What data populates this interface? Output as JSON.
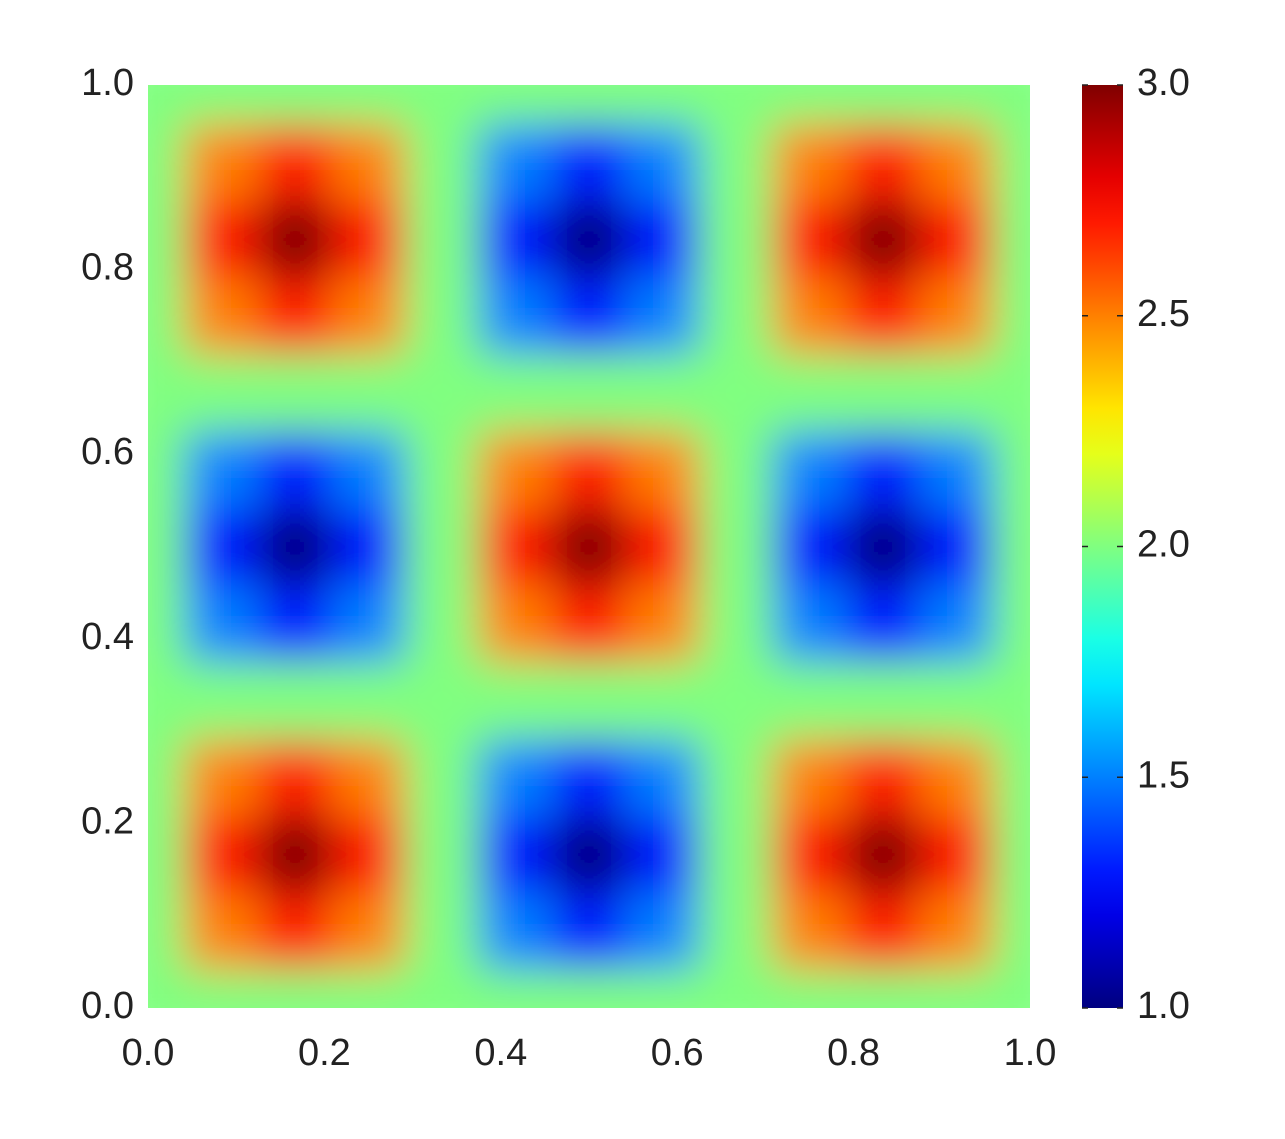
{
  "chart_data": {
    "type": "heatmap",
    "x": [
      0,
      0.083,
      0.167,
      0.25,
      0.333,
      0.417,
      0.5,
      0.583,
      0.667,
      0.75,
      0.833,
      0.917,
      1
    ],
    "y": [
      0,
      0.083,
      0.167,
      0.25,
      0.333,
      0.417,
      0.5,
      0.583,
      0.667,
      0.75,
      0.833,
      0.917,
      1
    ],
    "z": [
      [
        2,
        2,
        2,
        2,
        2,
        2,
        2,
        2,
        2,
        2,
        2,
        2,
        2
      ],
      [
        2,
        2.5,
        2.71,
        2.5,
        2,
        1.5,
        1.29,
        1.5,
        2,
        2.5,
        2.71,
        2.5,
        2
      ],
      [
        2,
        2.71,
        3,
        2.71,
        2,
        1.29,
        1,
        1.29,
        2,
        2.71,
        3,
        2.71,
        2
      ],
      [
        2,
        2.5,
        2.71,
        2.5,
        2,
        1.5,
        1.29,
        1.5,
        2,
        2.5,
        2.71,
        2.5,
        2
      ],
      [
        2,
        2,
        2,
        2,
        2,
        2,
        2,
        2,
        2,
        2,
        2,
        2,
        2
      ],
      [
        2,
        1.5,
        1.29,
        1.5,
        2,
        2.5,
        2.71,
        2.5,
        2,
        1.5,
        1.29,
        1.5,
        2
      ],
      [
        2,
        1.29,
        1,
        1.29,
        2,
        2.71,
        3,
        2.71,
        2,
        1.29,
        1,
        1.29,
        2
      ],
      [
        2,
        1.5,
        1.29,
        1.5,
        2,
        2.5,
        2.71,
        2.5,
        2,
        1.5,
        1.29,
        1.5,
        2
      ],
      [
        2,
        2,
        2,
        2,
        2,
        2,
        2,
        2,
        2,
        2,
        2,
        2,
        2
      ],
      [
        2,
        2.5,
        2.71,
        2.5,
        2,
        1.5,
        1.29,
        1.5,
        2,
        2.5,
        2.71,
        2.5,
        2
      ],
      [
        2,
        2.71,
        3,
        2.71,
        2,
        1.29,
        1,
        1.29,
        2,
        2.71,
        3,
        2.71,
        2
      ],
      [
        2,
        2.5,
        2.71,
        2.5,
        2,
        1.5,
        1.29,
        1.5,
        2,
        2.5,
        2.71,
        2.5,
        2
      ],
      [
        2,
        2,
        2,
        2,
        2,
        2,
        2,
        2,
        2,
        2,
        2,
        2,
        2
      ]
    ],
    "colormap": "jet",
    "xlim": [
      0,
      1
    ],
    "ylim": [
      0,
      1
    ],
    "clim": [
      1,
      3
    ],
    "xticks": [
      {
        "value": 0,
        "label": "0.0"
      },
      {
        "value": 0.2,
        "label": "0.2"
      },
      {
        "value": 0.4,
        "label": "0.4"
      },
      {
        "value": 0.6,
        "label": "0.6"
      },
      {
        "value": 0.8,
        "label": "0.8"
      },
      {
        "value": 1,
        "label": "1.0"
      }
    ],
    "yticks": [
      {
        "value": 0,
        "label": "0.0"
      },
      {
        "value": 0.2,
        "label": "0.2"
      },
      {
        "value": 0.4,
        "label": "0.4"
      },
      {
        "value": 0.6,
        "label": "0.6"
      },
      {
        "value": 0.8,
        "label": "0.8"
      },
      {
        "value": 1,
        "label": "1.0"
      }
    ],
    "cticks": [
      {
        "value": 1,
        "label": "1.0"
      },
      {
        "value": 1.5,
        "label": "1.5"
      },
      {
        "value": 2,
        "label": "2.0"
      },
      {
        "value": 2.5,
        "label": "2.5"
      },
      {
        "value": 3,
        "label": "3.0"
      }
    ]
  }
}
